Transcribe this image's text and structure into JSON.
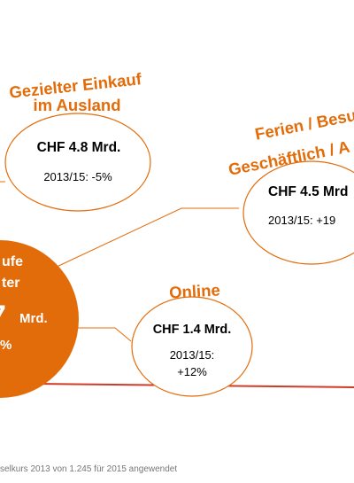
{
  "colors": {
    "accent": "#e36c0a",
    "main_fill": "#e36c0a",
    "bubble_stroke": "#e36c0a",
    "text": "#000000",
    "footnote": "#777777"
  },
  "main_bubble": {
    "line1": "ufe",
    "line2": "ter",
    "value_fragment": "7",
    "unit": "Mrd.",
    "percent_fragment": "%"
  },
  "bubbles": {
    "ausland": {
      "title_line1": "Gezielter Einkauf",
      "title_line2": "im Ausland",
      "amount": "CHF 4.8 Mrd.",
      "change": "2013/15: -5%"
    },
    "ferien": {
      "title_line1": "Ferien / Besu",
      "title_line2": "Geschäftlich / A",
      "amount": "CHF 4.5 Mrd",
      "change": "2013/15: +19"
    },
    "online": {
      "title": "Online",
      "amount": "CHF 1.4 Mrd.",
      "change_line1": "2013/15:",
      "change_line2": "+12%"
    }
  },
  "footnote": "selkurs 2013 von 1.245 für 2015 angewendet"
}
